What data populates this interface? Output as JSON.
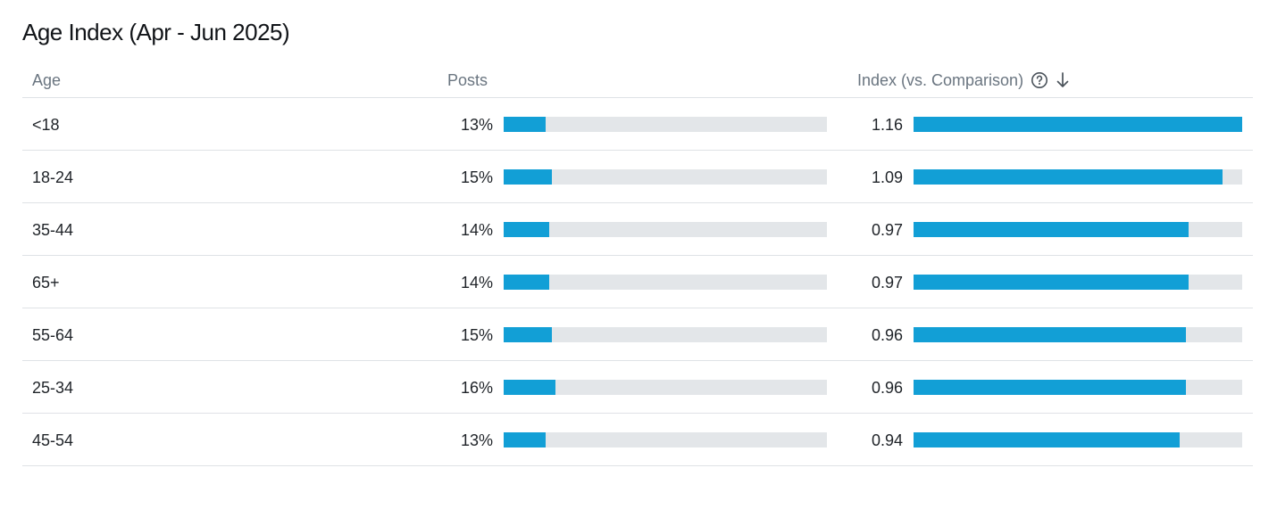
{
  "title": "Age Index (Apr - Jun 2025)",
  "columns": {
    "age": "Age",
    "posts": "Posts",
    "index": "Index (vs. Comparison)",
    "help_icon": "question-circle-icon",
    "sort_icon": "arrow-down-icon"
  },
  "colors": {
    "bar": "#129fd6",
    "track": "#e3e6e9"
  },
  "index_max": 1.16,
  "posts_track_full_percent": 100,
  "rows": [
    {
      "age": "<18",
      "posts": "13%",
      "posts_value": 13,
      "index": "1.16",
      "index_value": 1.16
    },
    {
      "age": "18-24",
      "posts": "15%",
      "posts_value": 15,
      "index": "1.09",
      "index_value": 1.09
    },
    {
      "age": "35-44",
      "posts": "14%",
      "posts_value": 14,
      "index": "0.97",
      "index_value": 0.97
    },
    {
      "age": "65+",
      "posts": "14%",
      "posts_value": 14,
      "index": "0.97",
      "index_value": 0.97
    },
    {
      "age": "55-64",
      "posts": "15%",
      "posts_value": 15,
      "index": "0.96",
      "index_value": 0.96
    },
    {
      "age": "25-34",
      "posts": "16%",
      "posts_value": 16,
      "index": "0.96",
      "index_value": 0.96
    },
    {
      "age": "45-54",
      "posts": "13%",
      "posts_value": 13,
      "index": "0.94",
      "index_value": 0.94
    }
  ]
}
